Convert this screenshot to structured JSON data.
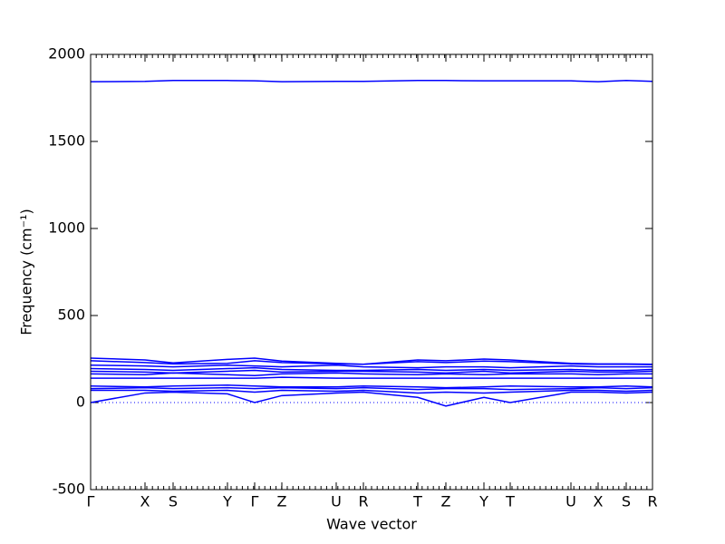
{
  "chart_data": {
    "type": "line",
    "x_label": "Wave vector",
    "y_label": "Frequency (cm⁻¹)",
    "color": "#0000ff",
    "zero_line": true,
    "xlim": [
      0,
      6.2
    ],
    "ylim": [
      -500,
      2000
    ],
    "yticks": [
      -500,
      0,
      500,
      1000,
      1500,
      2000
    ],
    "xticks": [
      {
        "value": 0,
        "label": "Γ"
      },
      {
        "value": 0.6,
        "label": "X"
      },
      {
        "value": 0.91,
        "label": "S"
      },
      {
        "value": 1.51,
        "label": "Y"
      },
      {
        "value": 1.81,
        "label": "Γ"
      },
      {
        "value": 2.11,
        "label": "Z"
      },
      {
        "value": 2.71,
        "label": "U"
      },
      {
        "value": 3.01,
        "label": "R"
      },
      {
        "value": 3.61,
        "label": "T"
      },
      {
        "value": 3.92,
        "label": "Z"
      },
      {
        "value": 4.34,
        "label": "Y"
      },
      {
        "value": 4.63,
        "label": "T"
      },
      {
        "value": 5.3,
        "label": "U"
      },
      {
        "value": 5.6,
        "label": "X"
      },
      {
        "value": 5.91,
        "label": "S"
      },
      {
        "value": 6.2,
        "label": "R"
      }
    ],
    "x": [
      0,
      0.6,
      0.91,
      1.51,
      1.81,
      2.11,
      2.71,
      3.01,
      3.61,
      3.92,
      4.34,
      4.63,
      5.3,
      5.6,
      5.91,
      6.2
    ],
    "bands": [
      {
        "values": [
          1843,
          1845,
          1850,
          1850,
          1848,
          1843,
          1845,
          1845,
          1850,
          1850,
          1848,
          1848,
          1848,
          1843,
          1850,
          1845
        ]
      },
      {
        "values": [
          255,
          245,
          228,
          248,
          255,
          238,
          225,
          220,
          245,
          240,
          250,
          245,
          225,
          222,
          222,
          220
        ]
      },
      {
        "values": [
          240,
          230,
          222,
          225,
          240,
          230,
          222,
          220,
          235,
          230,
          238,
          235,
          222,
          220,
          220,
          218
        ]
      },
      {
        "values": [
          215,
          210,
          205,
          215,
          210,
          205,
          215,
          205,
          200,
          205,
          205,
          200,
          210,
          205,
          205,
          205
        ]
      },
      {
        "values": [
          195,
          190,
          185,
          195,
          200,
          190,
          185,
          185,
          190,
          185,
          190,
          185,
          190,
          185,
          185,
          190
        ]
      },
      {
        "values": [
          180,
          175,
          170,
          180,
          185,
          175,
          180,
          180,
          175,
          170,
          180,
          170,
          180,
          175,
          175,
          180
        ]
      },
      {
        "values": [
          165,
          160,
          170,
          160,
          155,
          165,
          170,
          165,
          160,
          165,
          160,
          165,
          165,
          160,
          165,
          165
        ]
      },
      {
        "values": [
          140,
          140,
          140,
          140,
          140,
          145,
          140,
          140,
          140,
          140,
          140,
          140,
          140,
          140,
          140,
          140
        ]
      },
      {
        "values": [
          95,
          90,
          95,
          100,
          95,
          90,
          90,
          95,
          90,
          85,
          90,
          95,
          90,
          90,
          95,
          90
        ]
      },
      {
        "values": [
          80,
          85,
          80,
          85,
          80,
          85,
          80,
          85,
          75,
          80,
          80,
          75,
          80,
          85,
          80,
          85
        ]
      },
      {
        "values": [
          70,
          70,
          65,
          70,
          60,
          70,
          65,
          70,
          55,
          60,
          55,
          60,
          70,
          70,
          65,
          70
        ]
      },
      {
        "values": [
          0,
          55,
          60,
          50,
          0,
          40,
          55,
          60,
          30,
          -20,
          30,
          0,
          60,
          60,
          55,
          60
        ]
      }
    ]
  }
}
